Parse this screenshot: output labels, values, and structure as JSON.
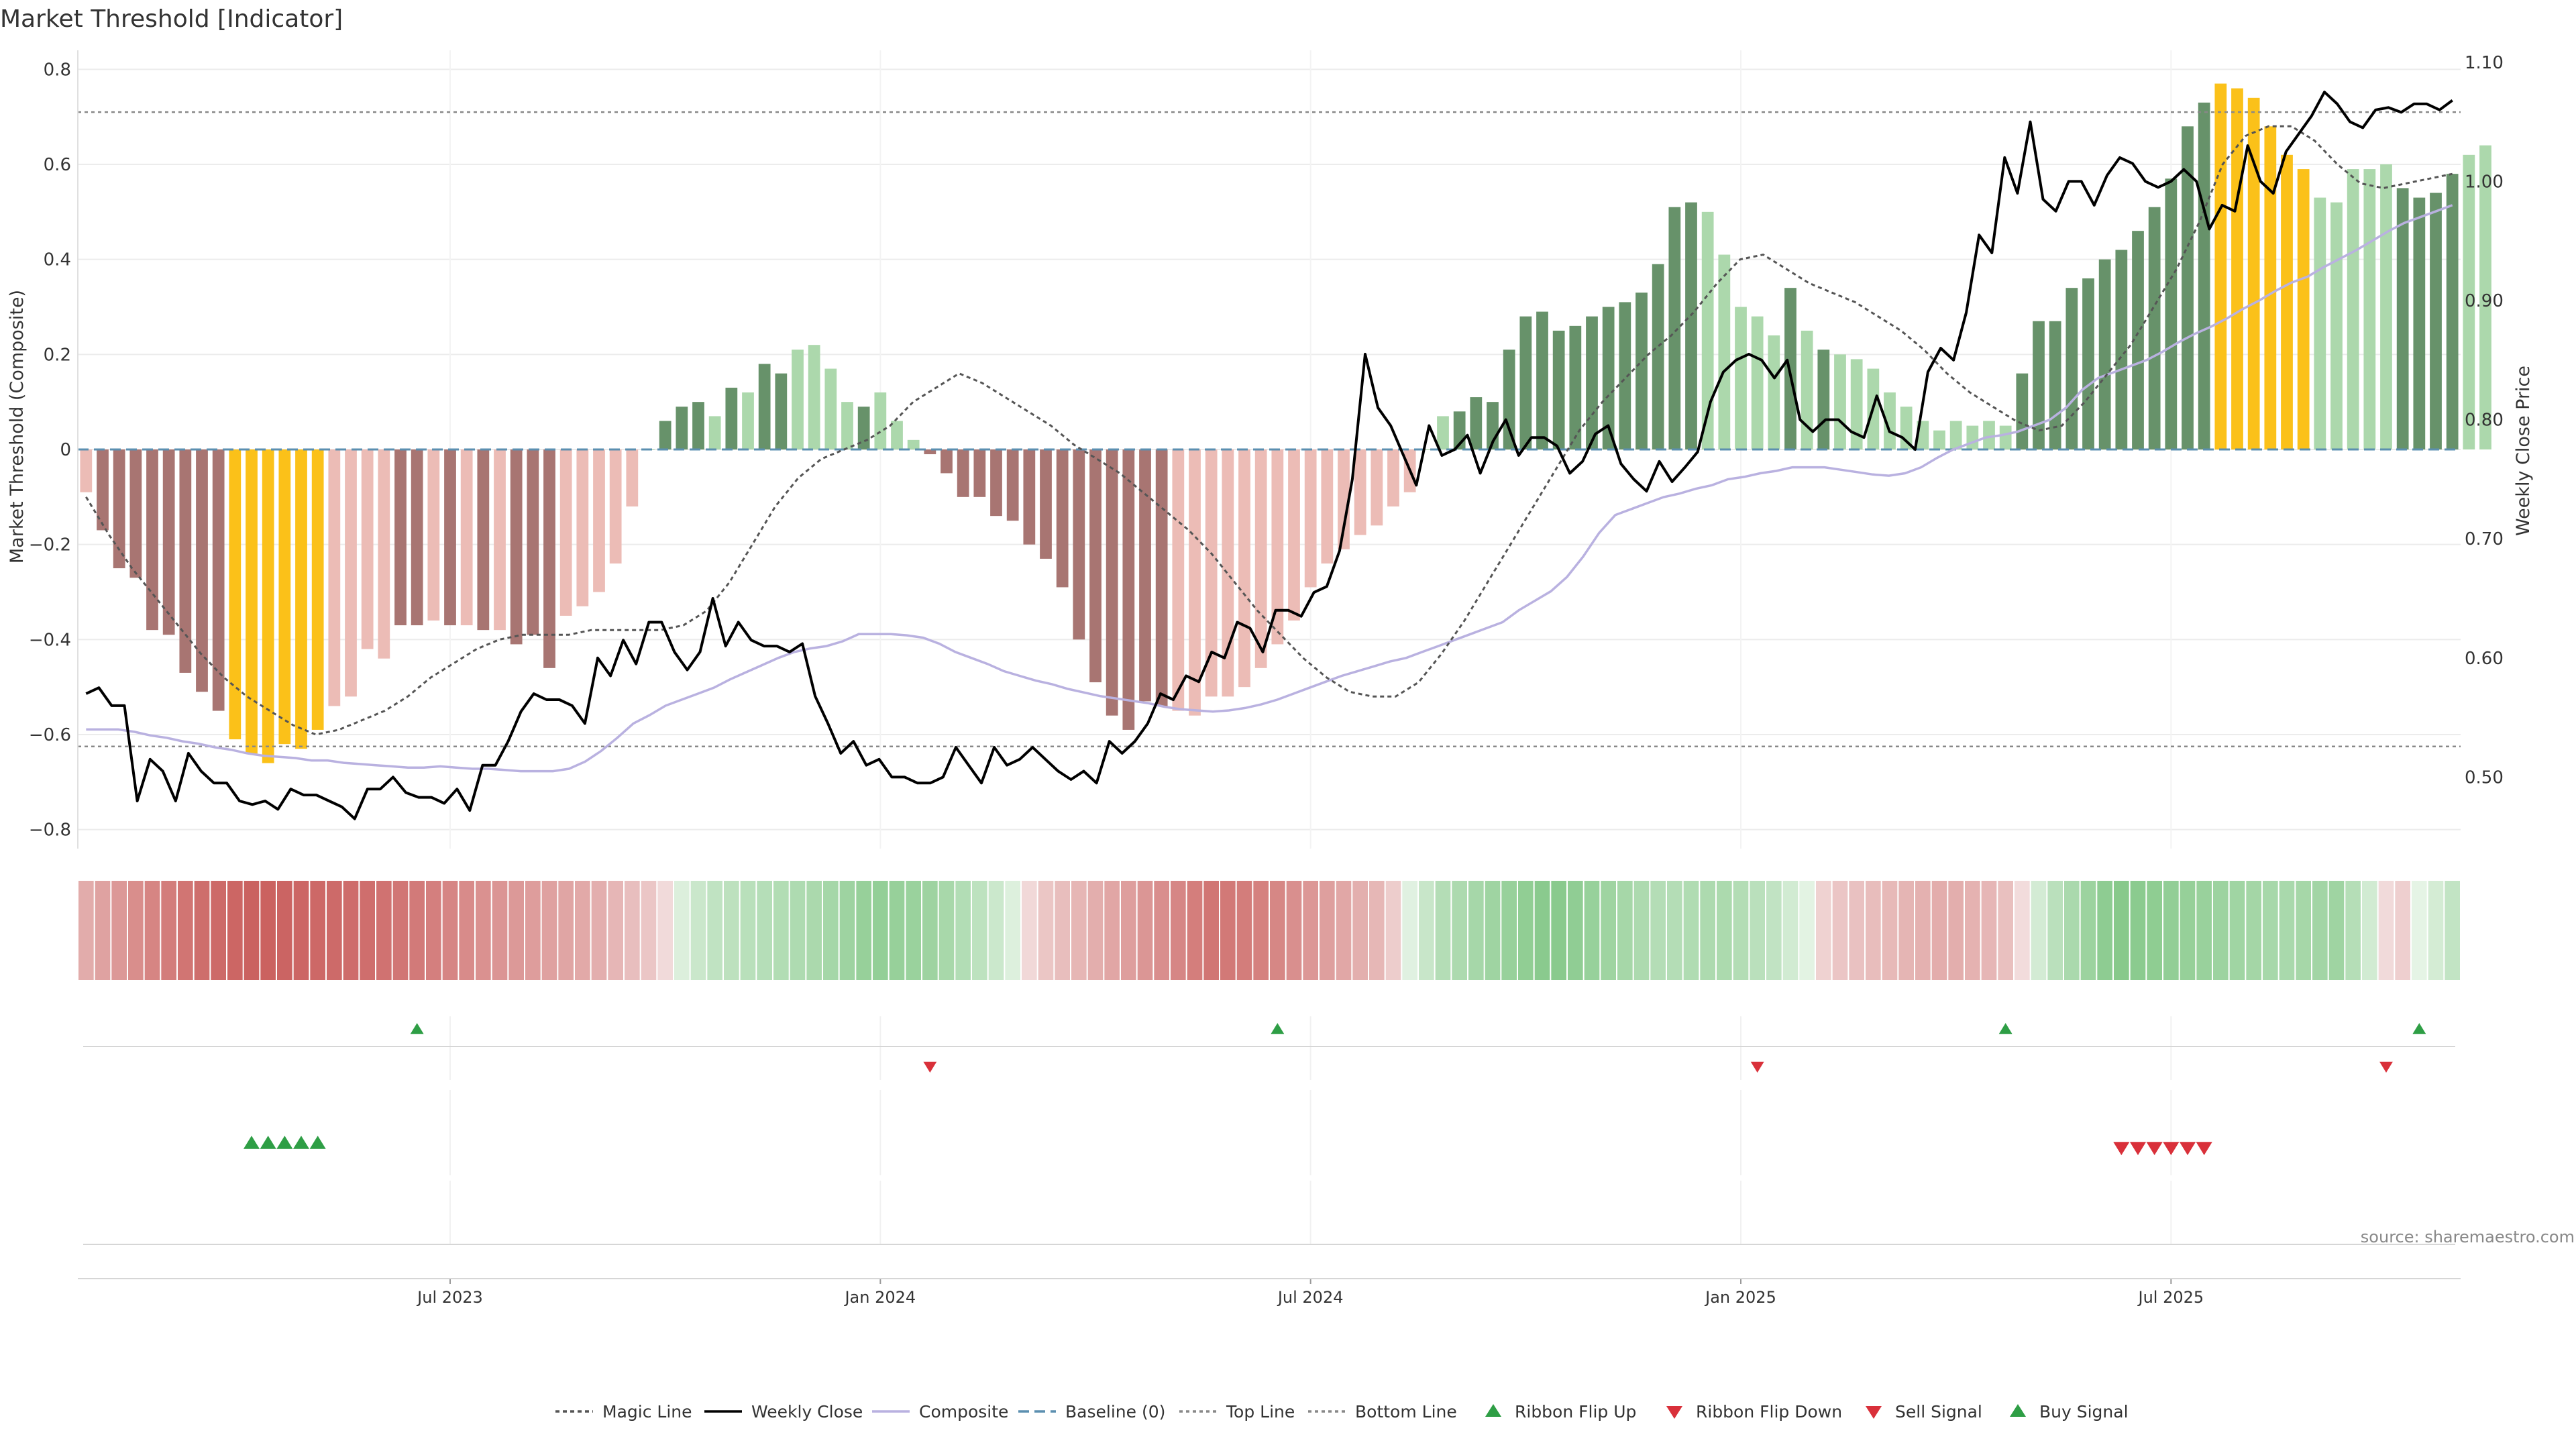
{
  "chart_data": {
    "type": "bar",
    "title": "Market Threshold [Indicator]",
    "ylabel_left": "Market Threshold (Composite)",
    "ylabel_right": "Weekly Close Price",
    "source": "source: sharemaestro.com",
    "x_tick_labels": [
      "Jul 2023",
      "Jan 2024",
      "Jul 2024",
      "Jan 2025",
      "Jul 2025"
    ],
    "x_tick_weeks": [
      22,
      48,
      74,
      100,
      126
    ],
    "weeks": 144,
    "y_left_ticks": [
      0.8,
      0.6,
      0.4,
      0.2,
      0,
      -0.2,
      -0.4,
      -0.6,
      -0.8
    ],
    "y_left_tick_labels": [
      "0.8",
      "0.6",
      "0.4",
      "0.2",
      "0",
      "−0.2",
      "−0.4",
      "−0.6",
      "−0.8"
    ],
    "ylim_left": [
      -0.84,
      0.84
    ],
    "y_right_ticks": [
      1.1,
      1.0,
      0.9,
      0.8,
      0.7,
      0.6,
      0.5
    ],
    "y_right_tick_labels": [
      "1.10",
      "1.00",
      "0.90",
      "0.80",
      "0.70",
      "0.60",
      "0.50"
    ],
    "ylim_right": [
      0.44,
      1.11
    ],
    "top_line": 0.71,
    "bottom_line": -0.625,
    "colors": {
      "dark_green": "#67926a",
      "light_green": "#acd8ac",
      "dark_red": "#a87572",
      "light_red": "#ecbcb6",
      "yellow": "#fbc119",
      "weekly_close": "#000000",
      "composite": "#b9b1e0",
      "magic_line": "#555555",
      "baseline": "#5b8fb0",
      "ref_line": "#888888",
      "flip_up": "#2e9e45",
      "flip_down": "#d9303a",
      "sell": "#d9303a",
      "buy": "#2e9e45"
    },
    "bars": [
      -0.09,
      -0.17,
      -0.25,
      -0.27,
      -0.38,
      -0.39,
      -0.47,
      -0.51,
      -0.55,
      -0.61,
      -0.64,
      -0.66,
      -0.62,
      -0.63,
      -0.59,
      -0.54,
      -0.52,
      -0.42,
      -0.44,
      -0.37,
      -0.37,
      -0.36,
      -0.37,
      -0.37,
      -0.38,
      -0.38,
      -0.41,
      -0.39,
      -0.46,
      -0.35,
      -0.33,
      -0.3,
      -0.24,
      -0.12,
      0.0,
      0.06,
      0.09,
      0.1,
      0.07,
      0.13,
      0.12,
      0.18,
      0.16,
      0.21,
      0.22,
      0.17,
      0.1,
      0.09,
      0.12,
      0.06,
      0.02,
      -0.01,
      -0.05,
      -0.1,
      -0.1,
      -0.14,
      -0.15,
      -0.2,
      -0.23,
      -0.29,
      -0.4,
      -0.49,
      -0.56,
      -0.59,
      -0.53,
      -0.54,
      -0.55,
      -0.56,
      -0.52,
      -0.52,
      -0.5,
      -0.46,
      -0.41,
      -0.36,
      -0.29,
      -0.24,
      -0.21,
      -0.18,
      -0.16,
      -0.12,
      -0.09,
      0.0,
      0.07,
      0.08,
      0.11,
      0.1,
      0.21,
      0.28,
      0.29,
      0.25,
      0.26,
      0.28,
      0.3,
      0.31,
      0.33,
      0.39,
      0.51,
      0.52,
      0.5,
      0.41,
      0.3,
      0.28,
      0.24,
      0.34,
      0.25,
      0.21,
      0.2,
      0.19,
      0.17,
      0.12,
      0.09,
      0.06,
      0.04,
      0.06,
      0.05,
      0.06,
      0.05,
      0.16,
      0.27,
      0.27,
      0.34,
      0.36,
      0.4,
      0.42,
      0.46,
      0.51,
      0.57,
      0.68,
      0.73,
      0.77,
      0.76,
      0.74,
      0.68,
      0.62,
      0.59,
      0.53,
      0.52,
      0.59,
      0.59,
      0.6,
      0.55,
      0.53,
      0.54,
      0.58,
      0.62,
      0.64
    ],
    "bar_colors": "LDDDDDDDDYYYYYYLLLLDDLDLDLDDDLLLLLLDDDLDLDDLLLLDLLLDDDDDDDDDDDDDDDLLLLLLLLLLLLLLLLLDDDDDDDDDDDDDDDLLLLLDLDLLLLLLLLLLLDDDDDDDDDDDDYYYYYYLLLLLDDDDLLDDDD",
    "weekly_close": [
      0.57,
      0.575,
      0.56,
      0.56,
      0.48,
      0.515,
      0.505,
      0.48,
      0.52,
      0.505,
      0.495,
      0.495,
      0.48,
      0.477,
      0.48,
      0.473,
      0.49,
      0.485,
      0.485,
      0.48,
      0.475,
      0.465,
      0.49,
      0.49,
      0.5,
      0.487,
      0.483,
      0.483,
      0.478,
      0.49,
      0.472,
      0.51,
      0.51,
      0.53,
      0.555,
      0.57,
      0.565,
      0.565,
      0.56,
      0.545,
      0.6,
      0.585,
      0.615,
      0.595,
      0.63,
      0.63,
      0.605,
      0.59,
      0.605,
      0.65,
      0.61,
      0.63,
      0.615,
      0.61,
      0.61,
      0.605,
      0.612,
      0.568,
      0.545,
      0.52,
      0.53,
      0.51,
      0.515,
      0.5,
      0.5,
      0.495,
      0.495,
      0.5,
      0.525,
      0.51,
      0.495,
      0.525,
      0.51,
      0.515,
      0.525,
      0.515,
      0.505,
      0.498,
      0.505,
      0.495,
      0.53,
      0.52,
      0.53,
      0.545,
      0.57,
      0.565,
      0.585,
      0.58,
      0.605,
      0.6,
      0.63,
      0.625,
      0.605,
      0.64,
      0.64,
      0.635,
      0.655,
      0.66,
      0.69,
      0.75,
      0.855,
      0.81,
      0.795,
      0.77,
      0.745,
      0.795,
      0.77,
      0.775,
      0.787,
      0.755,
      0.782,
      0.8,
      0.77,
      0.785,
      0.785,
      0.778,
      0.755,
      0.765,
      0.788,
      0.795,
      0.763,
      0.75,
      0.74,
      0.765,
      0.748,
      0.76,
      0.773,
      0.815,
      0.84,
      0.85,
      0.855,
      0.85,
      0.835,
      0.85,
      0.8,
      0.79,
      0.8,
      0.8,
      0.79,
      0.785,
      0.82,
      0.79,
      0.785,
      0.775,
      0.84,
      0.86,
      0.85,
      0.89,
      0.955,
      0.94,
      1.02,
      0.99,
      1.05,
      0.985,
      0.975,
      1.0,
      1.0,
      0.98,
      1.005,
      1.02,
      1.015,
      1.0,
      0.995,
      1.0,
      1.01,
      1.0,
      0.96,
      0.98,
      0.975,
      1.03,
      1.0,
      0.99,
      1.025,
      1.04,
      1.055,
      1.075,
      1.065,
      1.05,
      1.045,
      1.06,
      1.062,
      1.058,
      1.065,
      1.065,
      1.06,
      1.068
    ],
    "composite": [
      0.54,
      0.54,
      0.54,
      0.538,
      0.535,
      0.533,
      0.53,
      0.528,
      0.525,
      0.523,
      0.52,
      0.518,
      0.517,
      0.516,
      0.514,
      0.514,
      0.512,
      0.511,
      0.51,
      0.509,
      0.508,
      0.508,
      0.509,
      0.508,
      0.507,
      0.507,
      0.506,
      0.505,
      0.505,
      0.505,
      0.507,
      0.513,
      0.522,
      0.533,
      0.545,
      0.552,
      0.56,
      0.565,
      0.57,
      0.575,
      0.582,
      0.588,
      0.594,
      0.6,
      0.605,
      0.608,
      0.61,
      0.614,
      0.62,
      0.62,
      0.62,
      0.619,
      0.617,
      0.612,
      0.605,
      0.6,
      0.595,
      0.589,
      0.585,
      0.581,
      0.578,
      0.574,
      0.571,
      0.568,
      0.566,
      0.564,
      0.562,
      0.559,
      0.557,
      0.556,
      0.555,
      0.556,
      0.558,
      0.561,
      0.565,
      0.57,
      0.575,
      0.58,
      0.585,
      0.589,
      0.593,
      0.597,
      0.6,
      0.605,
      0.61,
      0.615,
      0.62,
      0.625,
      0.63,
      0.64,
      0.648,
      0.656,
      0.668,
      0.685,
      0.705,
      0.72,
      0.725,
      0.73,
      0.735,
      0.738,
      0.742,
      0.745,
      0.75,
      0.752,
      0.755,
      0.757,
      0.76,
      0.76,
      0.76,
      0.758,
      0.756,
      0.754,
      0.753,
      0.755,
      0.76,
      0.768,
      0.775,
      0.78,
      0.785,
      0.787,
      0.79,
      0.795,
      0.8,
      0.81,
      0.825,
      0.835,
      0.84,
      0.845,
      0.85,
      0.857,
      0.865,
      0.872,
      0.878,
      0.885,
      0.893,
      0.9,
      0.908,
      0.915,
      0.92,
      0.928,
      0.935,
      0.942,
      0.95,
      0.958,
      0.965,
      0.97,
      0.975,
      0.98
    ],
    "magic_line": [
      -0.1,
      -0.18,
      -0.25,
      -0.31,
      -0.37,
      -0.43,
      -0.48,
      -0.52,
      -0.55,
      -0.58,
      -0.6,
      -0.59,
      -0.57,
      -0.55,
      -0.52,
      -0.48,
      -0.45,
      -0.42,
      -0.4,
      -0.39,
      -0.39,
      -0.39,
      -0.38,
      -0.38,
      -0.38,
      -0.38,
      -0.37,
      -0.34,
      -0.28,
      -0.2,
      -0.12,
      -0.06,
      -0.02,
      0.0,
      0.02,
      0.05,
      0.1,
      0.13,
      0.16,
      0.14,
      0.11,
      0.08,
      0.05,
      0.01,
      -0.02,
      -0.05,
      -0.09,
      -0.13,
      -0.17,
      -0.22,
      -0.28,
      -0.34,
      -0.39,
      -0.44,
      -0.48,
      -0.51,
      -0.52,
      -0.52,
      -0.49,
      -0.43,
      -0.36,
      -0.28,
      -0.2,
      -0.12,
      -0.04,
      0.04,
      0.1,
      0.15,
      0.2,
      0.24,
      0.29,
      0.35,
      0.4,
      0.41,
      0.38,
      0.35,
      0.33,
      0.31,
      0.28,
      0.25,
      0.21,
      0.16,
      0.12,
      0.09,
      0.06,
      0.04,
      0.05,
      0.1,
      0.16,
      0.22,
      0.3,
      0.38,
      0.48,
      0.6,
      0.66,
      0.68,
      0.68,
      0.65,
      0.6,
      0.56,
      0.55,
      0.56,
      0.57,
      0.58
    ],
    "ribbon_strip": [
      -0.4,
      -0.65,
      -0.85,
      -0.95,
      -0.9,
      -0.85,
      -0.75,
      -0.6,
      -0.5,
      -0.4,
      -0.2,
      0.3,
      0.4,
      0.5,
      0.7,
      0.6,
      0.3,
      -0.2,
      -0.4,
      -0.6,
      -0.8,
      -0.7,
      -0.5,
      -0.3,
      0.4,
      0.6,
      0.8,
      0.6,
      0.4,
      0.5,
      0.3,
      -0.2,
      -0.3,
      -0.4,
      -0.3,
      0.4,
      0.8,
      0.7,
      0.6,
      0.5,
      0.6,
      -0.2,
      0.3
    ],
    "ribbon_flip_up_weeks": [
      20,
      72,
      116,
      141
    ],
    "ribbon_flip_down_weeks": [
      51,
      101,
      139
    ],
    "buy_signal_weeks": [
      10,
      11,
      12,
      13,
      14
    ],
    "sell_signal_weeks": [
      123,
      124,
      125,
      126,
      127,
      128
    ],
    "legend": [
      "Magic Line",
      "Weekly Close",
      "Composite",
      "Baseline (0)",
      "Top Line",
      "Bottom Line",
      "Ribbon Flip Up",
      "Ribbon Flip Down",
      "Sell Signal",
      "Buy Signal"
    ]
  }
}
